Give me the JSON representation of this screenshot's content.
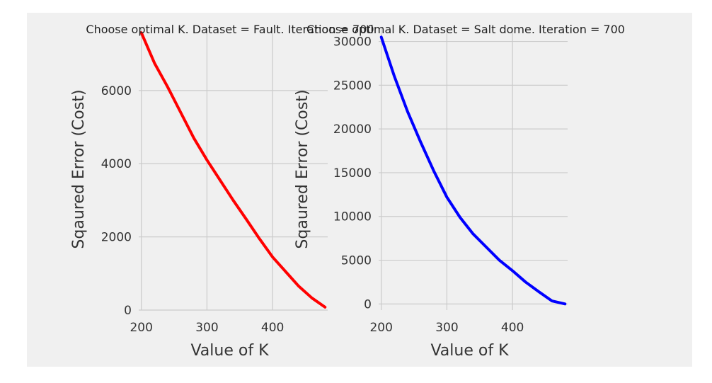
{
  "figure": {
    "background": "#f0f0f0",
    "grid_color": "#cbcbcb"
  },
  "chart_data": [
    {
      "type": "line",
      "title": "Choose optimal K. Dataset = Fault. Iteration = 700",
      "xlabel": "Value of K",
      "ylabel": "Sqaured Error (Cost)",
      "xlim": [
        196,
        484
      ],
      "ylim": [
        0,
        7700
      ],
      "xticks": [
        200,
        300,
        400
      ],
      "yticks": [
        0,
        2000,
        4000,
        6000
      ],
      "grid": true,
      "series": [
        {
          "name": "Fault",
          "color": "#ff0000",
          "x": [
            200,
            220,
            240,
            260,
            280,
            300,
            320,
            340,
            360,
            380,
            400,
            420,
            440,
            460,
            480
          ],
          "y": [
            7580,
            6750,
            6100,
            5400,
            4700,
            4100,
            3550,
            3000,
            2480,
            1950,
            1450,
            1050,
            650,
            330,
            80
          ]
        }
      ]
    },
    {
      "type": "line",
      "title": "Choose optimal K. Dataset = Salt dome. Iteration = 700",
      "xlabel": "Value of K",
      "ylabel": "Sqaured Error (Cost)",
      "xlim": [
        196,
        484
      ],
      "ylim": [
        -700,
        31500
      ],
      "xticks": [
        200,
        300,
        400
      ],
      "yticks": [
        0,
        5000,
        10000,
        15000,
        20000,
        25000,
        30000
      ],
      "grid": true,
      "series": [
        {
          "name": "Salt dome",
          "color": "#0000ff",
          "x": [
            200,
            220,
            240,
            260,
            280,
            300,
            320,
            340,
            360,
            380,
            400,
            420,
            440,
            460,
            480
          ],
          "y": [
            30500,
            26000,
            22000,
            18500,
            15200,
            12200,
            9900,
            8000,
            6500,
            5000,
            3800,
            2500,
            1400,
            350,
            0
          ]
        }
      ]
    }
  ]
}
